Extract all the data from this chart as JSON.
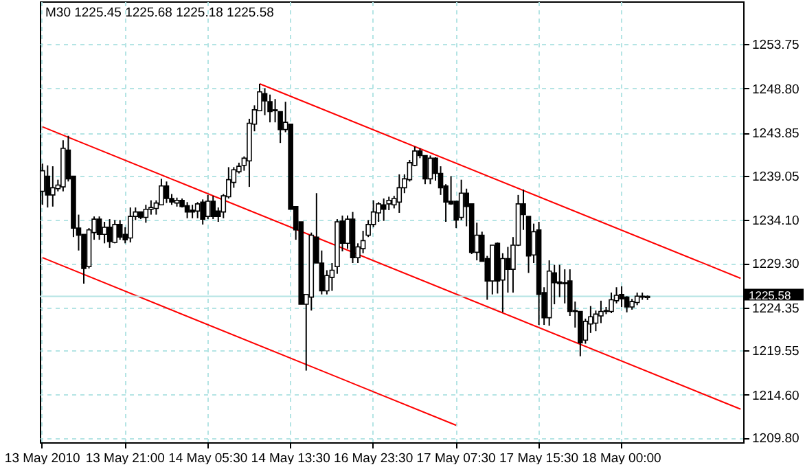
{
  "chart_data": {
    "type": "candlestick",
    "title": "M30 1225.45 1225.68 1225.18 1225.58",
    "categories": [
      "13 May 2010",
      null,
      null,
      null,
      null,
      null,
      null,
      null,
      null,
      null,
      null,
      null,
      null,
      null,
      null,
      null,
      "13 May 21:00",
      null,
      null,
      null,
      null,
      null,
      null,
      null,
      null,
      null,
      null,
      null,
      null,
      null,
      null,
      null,
      "14 May 05:30",
      null,
      null,
      null,
      null,
      null,
      null,
      null,
      null,
      null,
      null,
      null,
      null,
      null,
      null,
      null,
      "14 May 13:30",
      null,
      null,
      null,
      null,
      null,
      null,
      null,
      null,
      null,
      null,
      null,
      null,
      null,
      null,
      null,
      "16 May 23:30",
      null,
      null,
      null,
      null,
      null,
      null,
      null,
      null,
      null,
      null,
      null,
      null,
      null,
      null,
      null,
      "17 May 07:30",
      null,
      null,
      null,
      null,
      null,
      null,
      null,
      null,
      null,
      null,
      null,
      null,
      null,
      null,
      null,
      "17 May 15:30",
      null,
      null,
      null,
      null,
      null,
      null,
      null,
      null,
      null,
      null,
      null,
      null,
      null,
      null,
      null,
      "18 May 00:00",
      null,
      null,
      null,
      null,
      null,
      null,
      null,
      null,
      null,
      null,
      null,
      null,
      null,
      null,
      null,
      null,
      null,
      null,
      null,
      null,
      null,
      null,
      null
    ],
    "ohlc": [
      [
        1237.3,
        1240.4,
        1235.8,
        1239.6
      ],
      [
        1239.0,
        1240.2,
        1235.5,
        1236.9
      ],
      [
        1236.9,
        1240.1,
        1235.6,
        1237.7
      ],
      [
        1237.6,
        1238.6,
        1237.3,
        1238.0
      ],
      [
        1237.8,
        1243.0,
        1237.3,
        1242.1
      ],
      [
        1241.9,
        1243.5,
        1238.4,
        1238.7
      ],
      [
        1239.0,
        1239.0,
        1232.2,
        1233.2
      ],
      [
        1233.2,
        1234.7,
        1230.7,
        1232.4
      ],
      [
        1232.5,
        1232.5,
        1227.0,
        1228.7
      ],
      [
        1228.9,
        1233.2,
        1228.7,
        1233.0
      ],
      [
        1232.7,
        1234.5,
        1231.9,
        1234.2
      ],
      [
        1234.2,
        1234.5,
        1231.9,
        1232.5
      ],
      [
        1232.5,
        1233.9,
        1231.5,
        1233.3
      ],
      [
        1233.3,
        1234.2,
        1231.0,
        1231.7
      ],
      [
        1231.6,
        1234.1,
        1231.5,
        1233.6
      ],
      [
        1233.6,
        1234.1,
        1231.9,
        1232.2
      ],
      [
        1232.5,
        1233.3,
        1231.5,
        1231.9
      ],
      [
        1232.1,
        1235.5,
        1231.6,
        1234.5
      ],
      [
        1234.5,
        1235.5,
        1234.1,
        1235.0
      ],
      [
        1235.0,
        1235.0,
        1234.2,
        1234.4
      ],
      [
        1234.4,
        1235.8,
        1233.8,
        1235.3
      ],
      [
        1235.3,
        1236.3,
        1234.7,
        1235.5
      ],
      [
        1235.4,
        1236.3,
        1234.7,
        1236.0
      ],
      [
        1235.8,
        1238.7,
        1235.8,
        1237.9
      ],
      [
        1237.9,
        1238.4,
        1236.0,
        1236.5
      ],
      [
        1236.5,
        1237.0,
        1235.8,
        1236.1
      ],
      [
        1236.0,
        1236.6,
        1235.6,
        1236.3
      ],
      [
        1236.3,
        1236.5,
        1235.5,
        1235.6
      ],
      [
        1235.7,
        1236.1,
        1234.3,
        1235.0
      ],
      [
        1235.2,
        1235.8,
        1234.3,
        1235.0
      ],
      [
        1235.1,
        1236.1,
        1234.3,
        1235.9
      ],
      [
        1236.1,
        1236.4,
        1233.6,
        1234.2
      ],
      [
        1234.5,
        1236.9,
        1234.2,
        1236.2
      ],
      [
        1236.2,
        1236.8,
        1234.2,
        1234.5
      ],
      [
        1235.1,
        1235.5,
        1233.9,
        1234.5
      ],
      [
        1235.0,
        1237.0,
        1234.3,
        1236.8
      ],
      [
        1236.7,
        1240.0,
        1236.5,
        1238.6
      ],
      [
        1238.3,
        1240.0,
        1237.7,
        1239.7
      ],
      [
        1239.5,
        1240.5,
        1239.3,
        1240.1
      ],
      [
        1240.2,
        1241.2,
        1239.6,
        1241.0
      ],
      [
        1240.7,
        1245.4,
        1237.8,
        1244.9
      ],
      [
        1244.8,
        1246.9,
        1244.0,
        1246.4
      ],
      [
        1246.3,
        1249.3,
        1246.3,
        1248.4
      ],
      [
        1248.2,
        1248.8,
        1245.8,
        1247.4
      ],
      [
        1247.3,
        1248.1,
        1245.0,
        1246.2
      ],
      [
        1246.4,
        1247.6,
        1245.0,
        1246.3
      ],
      [
        1246.2,
        1246.2,
        1242.7,
        1244.2
      ],
      [
        1244.2,
        1247.3,
        1243.9,
        1245.0
      ],
      [
        1244.8,
        1244.8,
        1235.3,
        1235.3
      ],
      [
        1235.6,
        1235.6,
        1231.9,
        1233.0
      ],
      [
        1233.9,
        1233.9,
        1224.7,
        1224.7
      ],
      [
        1224.7,
        1225.8,
        1217.3,
        1225.8
      ],
      [
        1225.5,
        1232.7,
        1224.0,
        1232.4
      ],
      [
        1232.2,
        1237.1,
        1229.3,
        1229.3
      ],
      [
        1229.3,
        1230.7,
        1225.8,
        1226.2
      ],
      [
        1226.2,
        1228.5,
        1225.8,
        1227.9
      ],
      [
        1227.7,
        1229.3,
        1226.2,
        1228.5
      ],
      [
        1228.9,
        1234.2,
        1228.1,
        1233.9
      ],
      [
        1234.0,
        1234.6,
        1230.6,
        1231.5
      ],
      [
        1231.5,
        1234.6,
        1230.9,
        1234.2
      ],
      [
        1234.2,
        1235.0,
        1229.3,
        1229.9
      ],
      [
        1229.9,
        1231.5,
        1229.3,
        1231.1
      ],
      [
        1230.9,
        1232.9,
        1230.4,
        1231.8
      ],
      [
        1232.4,
        1234.1,
        1232.2,
        1233.6
      ],
      [
        1233.6,
        1236.3,
        1233.3,
        1235.0
      ],
      [
        1234.9,
        1236.1,
        1233.9,
        1235.9
      ],
      [
        1235.8,
        1236.5,
        1234.0,
        1235.3
      ],
      [
        1235.9,
        1236.7,
        1235.2,
        1236.3
      ],
      [
        1235.8,
        1236.8,
        1235.4,
        1236.5
      ],
      [
        1236.1,
        1239.2,
        1234.9,
        1237.7
      ],
      [
        1237.7,
        1239.2,
        1237.1,
        1238.7
      ],
      [
        1238.6,
        1240.8,
        1238.4,
        1240.5
      ],
      [
        1240.2,
        1242.3,
        1240.1,
        1241.8
      ],
      [
        1241.8,
        1242.1,
        1241.0,
        1241.3
      ],
      [
        1241.3,
        1241.3,
        1238.1,
        1238.7
      ],
      [
        1238.7,
        1241.3,
        1238.1,
        1241.0
      ],
      [
        1241.0,
        1241.1,
        1238.5,
        1239.3
      ],
      [
        1239.3,
        1240.1,
        1236.9,
        1237.7
      ],
      [
        1237.9,
        1238.1,
        1233.9,
        1236.1
      ],
      [
        1236.2,
        1239.0,
        1235.8,
        1235.9
      ],
      [
        1236.2,
        1236.2,
        1233.2,
        1234.1
      ],
      [
        1234.4,
        1238.6,
        1234.1,
        1237.1
      ],
      [
        1237.1,
        1237.6,
        1233.4,
        1235.6
      ],
      [
        1235.9,
        1235.9,
        1230.3,
        1230.5
      ],
      [
        1230.5,
        1233.8,
        1229.6,
        1232.4
      ],
      [
        1232.4,
        1232.8,
        1229.5,
        1229.5
      ],
      [
        1229.8,
        1230.1,
        1225.2,
        1227.3
      ],
      [
        1227.3,
        1231.3,
        1225.8,
        1231.3
      ],
      [
        1231.5,
        1231.6,
        1225.9,
        1227.3
      ],
      [
        1227.4,
        1230.4,
        1223.8,
        1229.8
      ],
      [
        1229.8,
        1231.1,
        1226.0,
        1228.6
      ],
      [
        1228.6,
        1232.2,
        1226.0,
        1231.3
      ],
      [
        1231.3,
        1236.9,
        1231.2,
        1235.9
      ],
      [
        1235.9,
        1237.5,
        1233.0,
        1234.7
      ],
      [
        1234.5,
        1234.5,
        1228.2,
        1230.1
      ],
      [
        1230.2,
        1233.7,
        1229.3,
        1232.8
      ],
      [
        1233.0,
        1233.9,
        1222.4,
        1225.8
      ],
      [
        1226.0,
        1226.6,
        1222.4,
        1223.2
      ],
      [
        1223.2,
        1229.6,
        1222.3,
        1228.4
      ],
      [
        1228.2,
        1229.1,
        1224.7,
        1227.1
      ],
      [
        1227.2,
        1229.1,
        1225.5,
        1227.0
      ],
      [
        1227.1,
        1228.6,
        1224.8,
        1227.0
      ],
      [
        1227.3,
        1228.6,
        1223.4,
        1223.9
      ],
      [
        1224.0,
        1225.0,
        1222.1,
        1223.9
      ],
      [
        1223.9,
        1223.9,
        1218.9,
        1220.4
      ],
      [
        1220.7,
        1223.1,
        1220.3,
        1222.8
      ],
      [
        1222.5,
        1224.5,
        1221.5,
        1223.3
      ],
      [
        1222.6,
        1224.0,
        1221.7,
        1223.6
      ],
      [
        1223.4,
        1225.1,
        1222.6,
        1223.9
      ],
      [
        1223.9,
        1224.4,
        1223.6,
        1224.0
      ],
      [
        1223.9,
        1226.0,
        1223.7,
        1225.2
      ],
      [
        1225.1,
        1226.6,
        1224.8,
        1225.7
      ],
      [
        1225.8,
        1226.7,
        1224.4,
        1225.3
      ],
      [
        1225.5,
        1225.6,
        1223.8,
        1224.4
      ],
      [
        1224.4,
        1225.3,
        1224.1,
        1225.0
      ],
      [
        1224.9,
        1226.0,
        1224.6,
        1225.6
      ],
      [
        1225.6,
        1226.0,
        1225.2,
        1225.5
      ],
      [
        1225.45,
        1225.68,
        1225.18,
        1225.58
      ],
      null,
      null,
      null,
      null,
      null,
      null,
      null,
      null,
      null,
      null,
      null,
      null,
      null,
      null,
      null,
      null,
      null,
      null
    ],
    "series": [
      {
        "type": "line",
        "color": "#ff0000",
        "values": [
          null,
          null,
          null,
          null,
          null,
          null,
          null,
          null,
          null,
          null,
          null,
          null,
          null,
          null,
          null,
          null,
          null,
          null,
          null,
          null,
          null,
          null,
          null,
          null,
          null,
          null,
          null,
          null,
          null,
          null,
          null,
          null,
          null,
          null,
          null,
          null,
          null,
          null,
          null,
          null,
          null,
          null,
          1249.3,
          null,
          null,
          null,
          null,
          null,
          null,
          null,
          null,
          null,
          null,
          null,
          null,
          null,
          null,
          null,
          null,
          null,
          null,
          null,
          null,
          null,
          null,
          null,
          null,
          null,
          null,
          null,
          null,
          null,
          null,
          null,
          null,
          null,
          null,
          null,
          null,
          null,
          null,
          null,
          null,
          null,
          null,
          null,
          null,
          null,
          null,
          null,
          null,
          null,
          null,
          null,
          null,
          null,
          null,
          null,
          null,
          null,
          null,
          null,
          null,
          null,
          null,
          null,
          null,
          null,
          null,
          null,
          null,
          null,
          null,
          null,
          null,
          null,
          null,
          null,
          null,
          null,
          null,
          null,
          null,
          null,
          null,
          null,
          null,
          null,
          null,
          null,
          null,
          null,
          null,
          null,
          null,
          1227.6
        ]
      },
      {
        "type": "line",
        "color": "#ff0000",
        "values": [
          1244.5,
          null,
          null,
          null,
          null,
          null,
          null,
          null,
          null,
          null,
          null,
          null,
          null,
          null,
          null,
          null,
          null,
          null,
          null,
          null,
          null,
          null,
          null,
          null,
          null,
          null,
          null,
          null,
          null,
          null,
          null,
          null,
          null,
          null,
          null,
          null,
          null,
          null,
          null,
          null,
          null,
          null,
          null,
          null,
          null,
          null,
          null,
          null,
          null,
          null,
          null,
          null,
          null,
          null,
          null,
          null,
          null,
          null,
          null,
          null,
          null,
          null,
          null,
          null,
          null,
          null,
          null,
          null,
          null,
          null,
          null,
          null,
          null,
          null,
          null,
          null,
          null,
          null,
          null,
          null,
          null,
          null,
          null,
          null,
          null,
          null,
          null,
          null,
          null,
          null,
          null,
          null,
          null,
          null,
          null,
          null,
          null,
          null,
          null,
          null,
          null,
          null,
          null,
          null,
          null,
          null,
          null,
          null,
          null,
          null,
          null,
          null,
          null,
          null,
          null,
          null,
          null,
          null,
          null,
          null,
          null,
          null,
          null,
          null,
          null,
          null,
          null,
          null,
          null,
          null,
          null,
          null,
          null,
          null,
          null,
          1213.0
        ]
      },
      {
        "type": "line",
        "color": "#ff0000",
        "values": [
          1229.9,
          null,
          null,
          null,
          null,
          null,
          null,
          null,
          null,
          null,
          null,
          null,
          null,
          null,
          null,
          null,
          null,
          null,
          null,
          null,
          null,
          null,
          null,
          null,
          null,
          null,
          null,
          null,
          null,
          null,
          null,
          null,
          null,
          null,
          null,
          null,
          null,
          null,
          null,
          null,
          null,
          null,
          null,
          null,
          null,
          null,
          null,
          null,
          null,
          null,
          null,
          null,
          null,
          null,
          null,
          null,
          null,
          null,
          null,
          null,
          null,
          null,
          null,
          null,
          null,
          null,
          null,
          null,
          null,
          null,
          null,
          null,
          null,
          null,
          null,
          null,
          null,
          null,
          null,
          null,
          1211.2,
          null,
          null,
          null,
          null,
          null,
          null,
          null,
          null,
          null,
          null,
          null,
          null,
          null,
          null,
          null,
          null,
          null,
          null,
          null,
          null,
          null,
          null,
          null,
          null,
          null,
          null,
          null,
          null,
          null,
          null,
          null,
          null,
          null,
          null,
          null,
          null,
          null,
          null,
          null,
          null,
          null,
          null,
          null,
          null,
          null,
          null,
          null,
          null,
          null,
          null,
          null,
          null,
          null,
          null,
          null
        ]
      }
    ],
    "ref_lines": [
      {
        "axis": "y",
        "value": 1225.58,
        "label": "1225.58",
        "color": "#b4e4e4"
      }
    ],
    "ylim": [
      1209.3,
      1258.5
    ],
    "yticks": [
      1253.75,
      {
        "value": 1248.8,
        "label": "1248.80"
      },
      1243.85,
      1239.05,
      {
        "value": 1234.1,
        "label": "1234.10"
      },
      {
        "value": 1229.3,
        "label": "1229.30"
      },
      1224.35,
      1219.55,
      {
        "value": 1214.6,
        "label": "1214.60"
      },
      {
        "value": 1209.8,
        "label": "1209.80"
      }
    ],
    "grid": true
  }
}
